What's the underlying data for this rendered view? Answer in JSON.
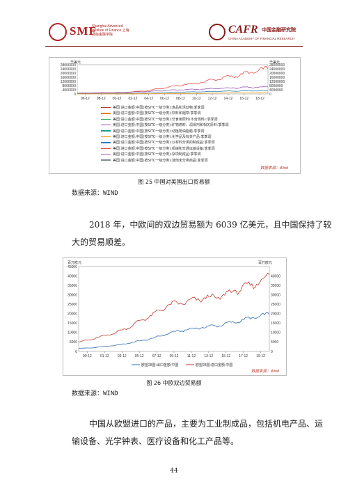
{
  "header": {
    "left_logo": "SMF",
    "left_logo_subtitle": "Shanghai Advanced Institute of Finance 上海高级金融学院",
    "right_logo": "CAFR",
    "right_logo_cn": "中国金融研究院",
    "right_logo_en": "CHINA ACADEMY OF FINANCIAL RESEARCH"
  },
  "figure25": {
    "caption": "图 25 中国对美国出口贸易额",
    "unit_left": "千美元",
    "unit_right": "千美元",
    "wind_note": "数据来源：Wind",
    "source": "数据来源：WIND",
    "legend": [
      {
        "label": "美国:进口金额:中国(按SITC一级分类):食品和活动物:季季调",
        "color": "#c0392b"
      },
      {
        "label": "美国:进口金额:中国(按SITC一级分类):饮料和烟草:季季调",
        "color": "#e67e22"
      },
      {
        "label": "美国:进口金额:中国(按SITC一级分类):非食用原料(不含燃料):季季调",
        "color": "#27ae60"
      },
      {
        "label": "美国:进口金额:中国(按SITC一级分类):矿物燃料、润滑剂和相关原料:季季调",
        "color": "#8e44ad"
      },
      {
        "label": "美国:进口金额:中国(按SITC一级分类):动植物油脂蜡:季季调",
        "color": "#16a085"
      },
      {
        "label": "美国:进口金额:中国(按SITC一级分类):化学品及有关产品:季季调",
        "color": "#f39c12"
      },
      {
        "label": "美国:进口金额:中国(按SITC一级分类):以材料分类的制成品:季季调",
        "color": "#2980b9"
      },
      {
        "label": "美国:进口金额:中国(按SITC一级分类):机械和交通运输设备:季季调",
        "color": "#e74c3c"
      },
      {
        "label": "美国:进口金额:中国(按SITC一级分类):杂项制成品:季季调",
        "color": "#9b59b6"
      },
      {
        "label": "美国:进口金额:中国(按SITC一级分类):其他未分类商品:季季调",
        "color": "#7f8c8d"
      }
    ]
  },
  "chart_data": [
    {
      "type": "line",
      "x_ticks": [
        "96-12",
        "98-12",
        "00-12",
        "02-12",
        "04-12",
        "06-12",
        "08-12",
        "10-12",
        "12-12",
        "14-12",
        "16-12",
        "18-12"
      ],
      "ylim": [
        0,
        28000000
      ],
      "y_ticks_left": [
        "28000000",
        "24000000",
        "20000000",
        "16000000",
        "12000000",
        "8000000",
        "4000000",
        "0"
      ],
      "y_ticks_right": [
        "28000000",
        "24000000",
        "20000000",
        "16000000",
        "12000000",
        "8000000",
        "4000000",
        "0"
      ],
      "series": [
        {
          "label_index": 7,
          "values": [
            400000,
            700000,
            1300000,
            1900000,
            3000000,
            5800000,
            8500000,
            10500000,
            14200000,
            17000000,
            20500000,
            24500000
          ]
        },
        {
          "label_index": 8,
          "values": [
            800000,
            1000000,
            1400000,
            1700000,
            2200000,
            3200000,
            4000000,
            4400000,
            5200000,
            5800000,
            6300000,
            6900000
          ]
        },
        {
          "label_index": 6,
          "values": [
            200000,
            300000,
            400000,
            550000,
            800000,
            1400000,
            1800000,
            2000000,
            2500000,
            2800000,
            3000000,
            3300000
          ]
        },
        {
          "label_index": 5,
          "values": [
            50000,
            80000,
            110000,
            150000,
            230000,
            380000,
            560000,
            600000,
            800000,
            950000,
            1050000,
            1250000
          ]
        }
      ]
    },
    {
      "type": "line",
      "unit_left": "百万欧元",
      "unit_right": "百万欧元",
      "x_ticks": [
        "99-12",
        "01-12",
        "03-12",
        "05-12",
        "07-12",
        "09-12",
        "11-12",
        "13-12",
        "15-12",
        "17-12",
        "19-12"
      ],
      "ylim": [
        0,
        45000
      ],
      "y_ticks_left": [
        "45000",
        "40000",
        "35000",
        "30000",
        "25000",
        "20000",
        "15000",
        "10000",
        "5000",
        "0"
      ],
      "y_ticks_right": [
        "40000",
        "35000",
        "30000",
        "25000",
        "20000",
        "15000",
        "10000",
        "5000",
        "0"
      ],
      "series": [
        {
          "name": "欧盟28国:出口金额:中国",
          "color": "#2e6db4",
          "values": [
            1600,
            1900,
            2600,
            3300,
            4500,
            5800,
            7200,
            9500,
            11000,
            12000,
            13000,
            13800,
            15200,
            16800,
            18300,
            19800
          ]
        },
        {
          "name": "欧盟28国:进口金额:中国",
          "color": "#c0392b",
          "values": [
            5000,
            6400,
            8200,
            10200,
            13000,
            16800,
            20000,
            24500,
            25700,
            27000,
            28500,
            28800,
            31500,
            33800,
            36200,
            40300
          ]
        }
      ]
    }
  ],
  "figure26": {
    "caption": "图 26 中欧双边贸易额",
    "wind_note": "数据来源：Wind",
    "source": "数据来源：WIND"
  },
  "paragraph1_line1": "2018 年，中欧间的双边贸易额为 6039 亿美元，且中国保持了较",
  "paragraph1_line2": "大的贸易顺差。",
  "paragraph2_line1": "中国从欧盟进口的产品，主要为工业制成品，包括机电产品、运",
  "paragraph2_line2": "输设备、光学钟表、医疗设备和化工产品等。",
  "page_number": "44"
}
